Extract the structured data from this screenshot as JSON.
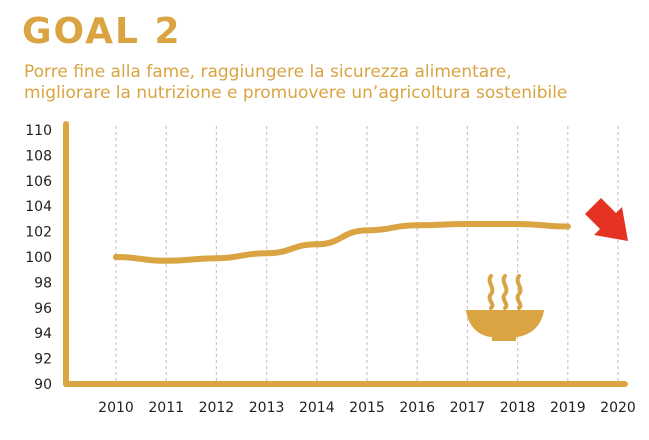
{
  "header": {
    "title": "GOAL 2",
    "subtitle_line1": "Porre fine alla fame, raggiungere la sicurezza alimentare,",
    "subtitle_line2": "migliorare la nutrizione e promuovere un’agricoltura sostenibile"
  },
  "colors": {
    "accent": "#d9a441",
    "arrow": "#e63222",
    "grid": "#c8c8c8",
    "text": "#1f1f1f"
  },
  "icons": [
    "soup-bowl-icon",
    "down-arrow-icon"
  ],
  "chart_data": {
    "type": "line",
    "title": "",
    "xlabel": "",
    "ylabel": "",
    "ylim": [
      90,
      110
    ],
    "yticks": [
      90,
      92,
      94,
      96,
      98,
      100,
      102,
      104,
      106,
      108,
      110
    ],
    "x_ticks": [
      2010,
      2011,
      2012,
      2013,
      2014,
      2015,
      2016,
      2017,
      2018,
      2019,
      2020
    ],
    "grid": "vertical dashed",
    "series": [
      {
        "x": [
          2010,
          2011,
          2012,
          2013,
          2014,
          2015,
          2016,
          2017,
          2018,
          2019
        ],
        "values": [
          100.0,
          99.7,
          99.9,
          100.3,
          101.0,
          102.1,
          102.5,
          102.6,
          102.6,
          102.4
        ]
      }
    ],
    "trend_indicator": "down"
  }
}
